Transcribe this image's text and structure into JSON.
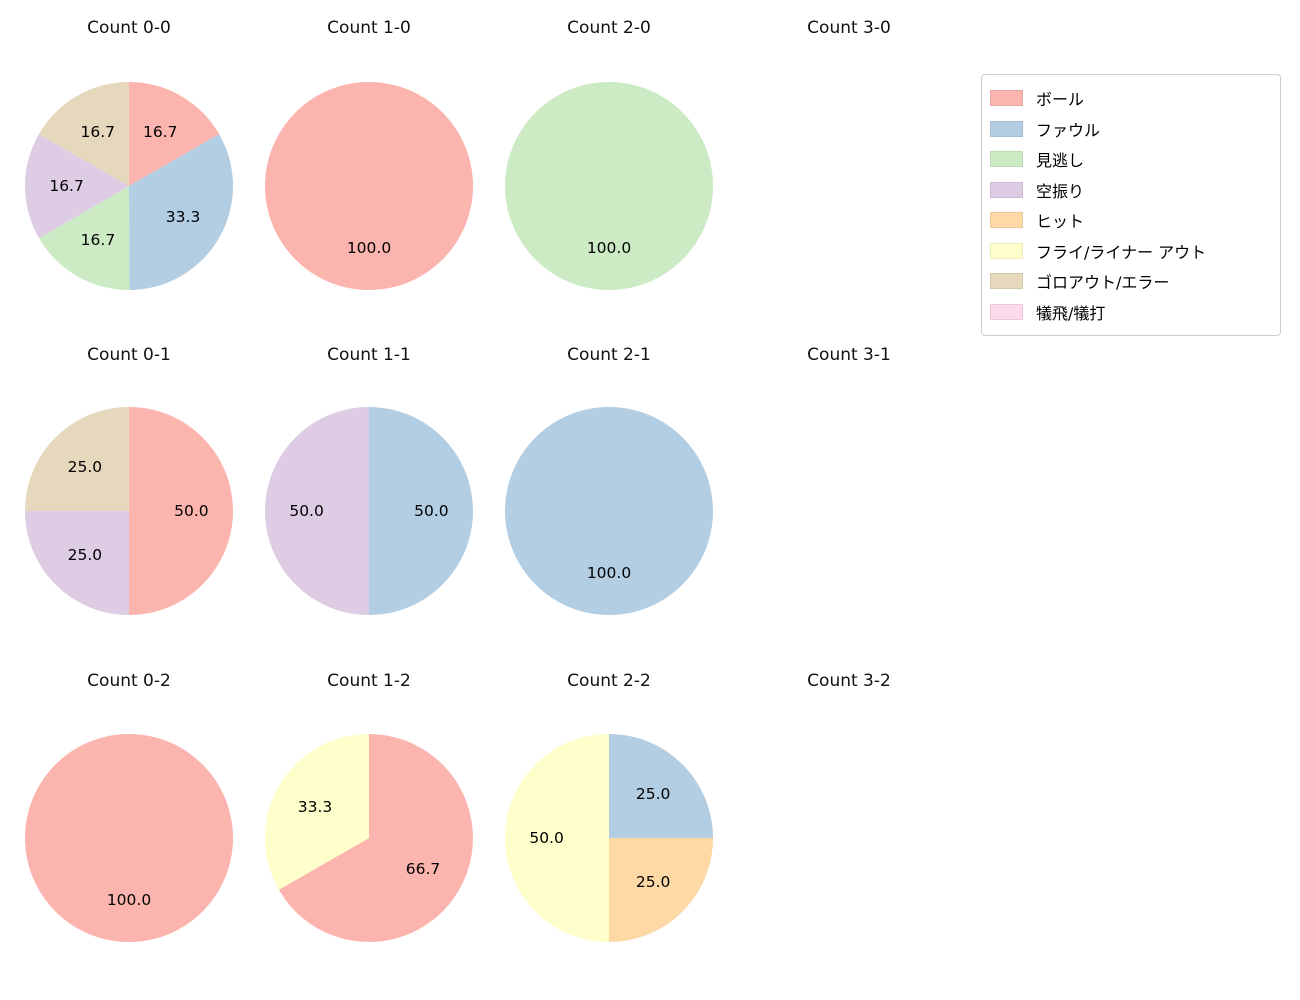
{
  "page": {
    "background": "#ffffff"
  },
  "legend": {
    "items": [
      {
        "label": "ボール",
        "color": "#fbb4ae"
      },
      {
        "label": "ファウル",
        "color": "#b3cde3"
      },
      {
        "label": "見逃し",
        "color": "#ccebc5"
      },
      {
        "label": "空振り",
        "color": "#decbe4"
      },
      {
        "label": "ヒット",
        "color": "#fed9a6"
      },
      {
        "label": "フライ/ライナー アウト",
        "color": "#ffffcc"
      },
      {
        "label": "ゴロアウト/エラー",
        "color": "#e5d8bd"
      },
      {
        "label": "犠飛/犠打",
        "color": "#fddaec"
      }
    ]
  },
  "chart_data": [
    {
      "type": "pie",
      "title": "Count 0-0",
      "start_angle": 90,
      "direction": "clockwise",
      "slices": [
        {
          "label": "ボール",
          "value": 16.7
        },
        {
          "label": "ファウル",
          "value": 33.3
        },
        {
          "label": "見逃し",
          "value": 16.7
        },
        {
          "label": "空振り",
          "value": 16.7
        },
        {
          "label": "ゴロアウト/エラー",
          "value": 16.7
        }
      ]
    },
    {
      "type": "pie",
      "title": "Count 1-0",
      "start_angle": 90,
      "direction": "clockwise",
      "slices": [
        {
          "label": "ボール",
          "value": 100.0
        }
      ]
    },
    {
      "type": "pie",
      "title": "Count 2-0",
      "start_angle": 90,
      "direction": "clockwise",
      "slices": [
        {
          "label": "見逃し",
          "value": 100.0
        }
      ]
    },
    {
      "type": "pie",
      "title": "Count 3-0",
      "start_angle": 90,
      "direction": "clockwise",
      "slices": []
    },
    {
      "type": "pie",
      "title": "Count 0-1",
      "start_angle": 90,
      "direction": "clockwise",
      "slices": [
        {
          "label": "ボール",
          "value": 50.0
        },
        {
          "label": "空振り",
          "value": 25.0
        },
        {
          "label": "ゴロアウト/エラー",
          "value": 25.0
        }
      ]
    },
    {
      "type": "pie",
      "title": "Count 1-1",
      "start_angle": 90,
      "direction": "clockwise",
      "slices": [
        {
          "label": "ファウル",
          "value": 50.0
        },
        {
          "label": "空振り",
          "value": 50.0
        }
      ]
    },
    {
      "type": "pie",
      "title": "Count 2-1",
      "start_angle": 90,
      "direction": "clockwise",
      "slices": [
        {
          "label": "ファウル",
          "value": 100.0
        }
      ]
    },
    {
      "type": "pie",
      "title": "Count 3-1",
      "start_angle": 90,
      "direction": "clockwise",
      "slices": []
    },
    {
      "type": "pie",
      "title": "Count 0-2",
      "start_angle": 90,
      "direction": "clockwise",
      "slices": [
        {
          "label": "ボール",
          "value": 100.0
        }
      ]
    },
    {
      "type": "pie",
      "title": "Count 1-2",
      "start_angle": 90,
      "direction": "clockwise",
      "slices": [
        {
          "label": "ボール",
          "value": 66.7
        },
        {
          "label": "フライ/ライナー アウト",
          "value": 33.3
        }
      ]
    },
    {
      "type": "pie",
      "title": "Count 2-2",
      "start_angle": 90,
      "direction": "clockwise",
      "slices": [
        {
          "label": "ファウル",
          "value": 25.0
        },
        {
          "label": "ヒット",
          "value": 25.0
        },
        {
          "label": "フライ/ライナー アウト",
          "value": 50.0
        }
      ]
    },
    {
      "type": "pie",
      "title": "Count 3-2",
      "start_angle": 90,
      "direction": "clockwise",
      "slices": []
    }
  ]
}
